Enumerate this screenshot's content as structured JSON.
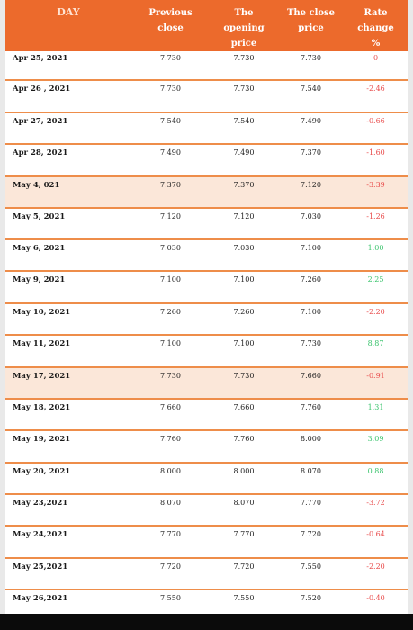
{
  "header": {
    "day": "DAY",
    "previous_close": "Previous\nclose",
    "opening_price": "The\nopening\nprice",
    "close_price": "The close\nprice",
    "rate_change": "Rate\nchange\n%"
  },
  "colors": {
    "header_bg": "#ec6a2c",
    "row_divider": "#ee8d4a",
    "highlight_row": "#fbe7d9",
    "negative": "#e84a4a",
    "positive": "#3cc46e"
  },
  "rows": [
    {
      "day": "Apr 25, 2021",
      "prev": "7.730",
      "open": "7.730",
      "close": "7.730",
      "rate": "0",
      "sign": "zero",
      "hl": false
    },
    {
      "day": "Apr  26 , 2021",
      "prev": "7.730",
      "open": "7.730",
      "close": "7.540",
      "rate": "-2.46",
      "sign": "neg",
      "hl": false
    },
    {
      "day": "Apr  27, 2021",
      "prev": "7.540",
      "open": "7.540",
      "close": "7.490",
      "rate": "-0.66",
      "sign": "neg",
      "hl": false
    },
    {
      "day": "Apr  28, 2021",
      "prev": "7.490",
      "open": "7.490",
      "close": "7.370",
      "rate": "-1.60",
      "sign": "neg",
      "hl": false
    },
    {
      "day": "May  4, 021",
      "prev": "7.370",
      "open": "7.370",
      "close": "7.120",
      "rate": "-3.39",
      "sign": "neg",
      "hl": true
    },
    {
      "day": "May  5, 2021",
      "prev": "7.120",
      "open": "7.120",
      "close": "7.030",
      "rate": "-1.26",
      "sign": "neg",
      "hl": false
    },
    {
      "day": "May  6,  2021",
      "prev": "7.030",
      "open": "7.030",
      "close": "7.100",
      "rate": "1.00",
      "sign": "pos",
      "hl": false
    },
    {
      "day": "May 9, 2021",
      "prev": "7.100",
      "open": "7.100",
      "close": "7.260",
      "rate": "2.25",
      "sign": "pos",
      "hl": false
    },
    {
      "day": "May  10, 2021",
      "prev": "7.260",
      "open": "7.260",
      "close": "7.100",
      "rate": "-2.20",
      "sign": "neg",
      "hl": false
    },
    {
      "day": "May 11, 2021",
      "prev": "7.100",
      "open": "7.100",
      "close": "7.730",
      "rate": "8.87",
      "sign": "pos",
      "hl": false
    },
    {
      "day": "May 17, 2021",
      "prev": "7.730",
      "open": "7.730",
      "close": "7.660",
      "rate": "-0.91",
      "sign": "neg",
      "hl": true
    },
    {
      "day": "May 18, 2021",
      "prev": "7.660",
      "open": "7.660",
      "close": "7.760",
      "rate": "1.31",
      "sign": "pos",
      "hl": false
    },
    {
      "day": "May 19, 2021",
      "prev": "7.760",
      "open": "7.760",
      "close": "8.000",
      "rate": "3.09",
      "sign": "pos",
      "hl": false
    },
    {
      "day": "May 20, 2021",
      "prev": "8.000",
      "open": "8.000",
      "close": "8.070",
      "rate": "0.88",
      "sign": "pos",
      "hl": false
    },
    {
      "day": "May 23,2021",
      "prev": "8.070",
      "open": "8.070",
      "close": "7.770",
      "rate": "-3.72",
      "sign": "neg",
      "hl": false
    },
    {
      "day": "May 24,2021",
      "prev": "7.770",
      "open": "7.770",
      "close": "7.720",
      "rate": "-0.64",
      "sign": "neg",
      "hl": false
    },
    {
      "day": "May 25,2021",
      "prev": "7.720",
      "open": "7.720",
      "close": "7.550",
      "rate": "-2.20",
      "sign": "neg",
      "hl": false
    },
    {
      "day": "May 26,2021",
      "prev": "7.550",
      "open": "7.550",
      "close": "7.520",
      "rate": "-0.40",
      "sign": "neg",
      "hl": false
    }
  ]
}
